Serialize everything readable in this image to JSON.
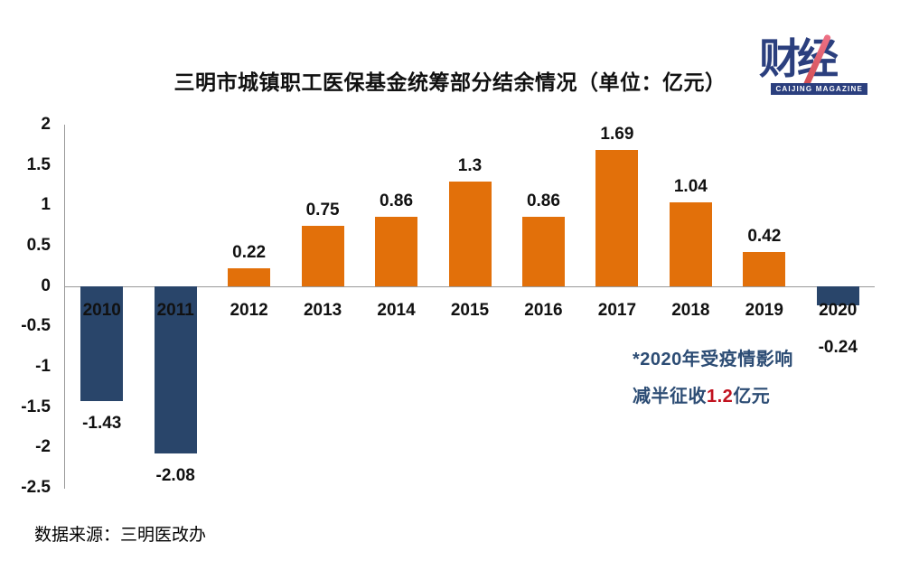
{
  "header": {
    "title": "三明市城镇职工医保基金统筹部分结余情况（单位：亿元）"
  },
  "logo": {
    "text": "财经",
    "subtext": "CAIJING MAGAZINE",
    "color": "#2B3F7E",
    "slash_color_top": "#EE7186",
    "slash_color_bottom": "#CF4B4F"
  },
  "chart_data": {
    "type": "bar",
    "title": "三明市城镇职工医保基金统筹部分结余情况（单位：亿元）",
    "categories": [
      "2010",
      "2011",
      "2012",
      "2013",
      "2014",
      "2015",
      "2016",
      "2017",
      "2018",
      "2019",
      "2020"
    ],
    "values": [
      -1.43,
      -2.08,
      0.22,
      0.75,
      0.86,
      1.3,
      0.86,
      1.69,
      1.04,
      0.42,
      -0.24
    ],
    "labels": [
      "-1.43",
      "-2.08",
      "0.22",
      "0.75",
      "0.86",
      "1.3",
      "0.86",
      "1.69",
      "1.04",
      "0.42",
      "-0.24"
    ],
    "yticks": [
      "2",
      "1.5",
      "1",
      "0.5",
      "0",
      "-0.5",
      "-1",
      "-1.5",
      "-2",
      "-2.5"
    ],
    "ylim": [
      -2.5,
      2
    ],
    "ytick_interval": 0.5,
    "grid": false,
    "legend": "none",
    "positive_color": "#E2700A",
    "negative_color": "#29456A",
    "axis_color": "#999999",
    "label_color": "#111111"
  },
  "annotation": {
    "line1": "*2020年受疫情影响",
    "line2_prefix": "减半征收",
    "line2_highlight": "1.2",
    "line2_suffix": "亿元",
    "text_color": "#2C4C74",
    "highlight_color": "#C1121F"
  },
  "footer": {
    "source": "数据来源：三明医改办"
  }
}
